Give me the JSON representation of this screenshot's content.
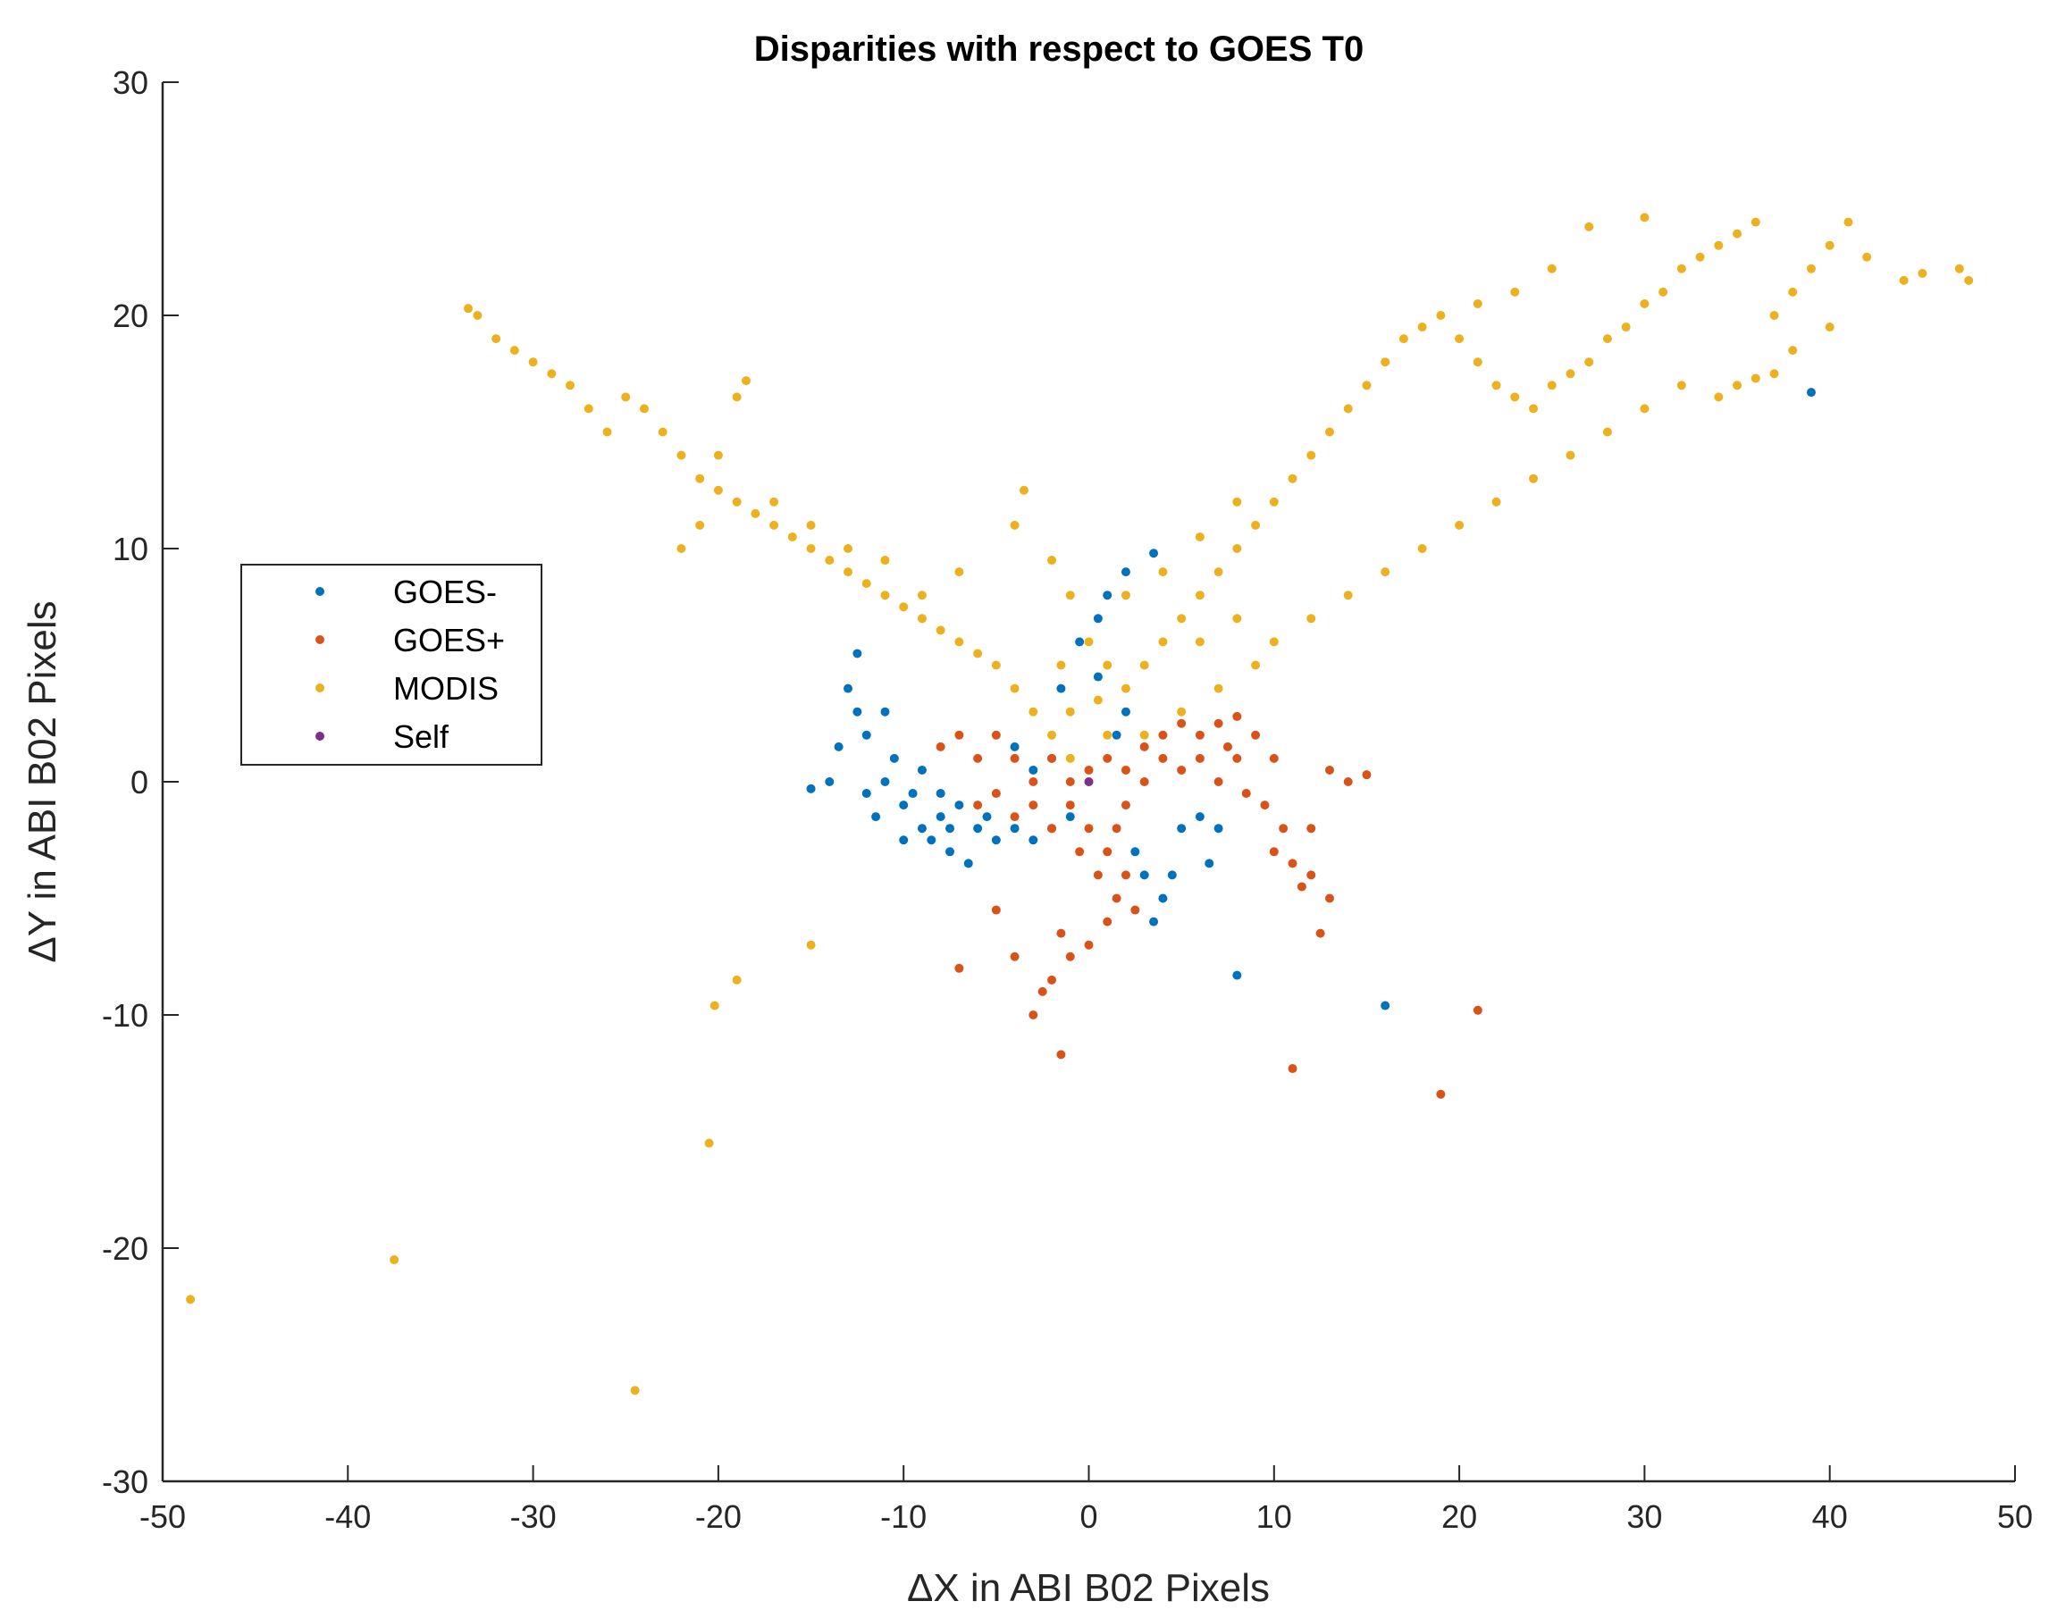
{
  "chart_data": {
    "type": "scatter",
    "title": "Disparities with respect to GOES T0",
    "xlabel": "ΔX in ABI B02 Pixels",
    "ylabel": "ΔY in ABI B02 Pixels",
    "xlim": [
      -50,
      50
    ],
    "ylim": [
      -30,
      30
    ],
    "xticks": [
      -50,
      -40,
      -30,
      -20,
      -10,
      0,
      10,
      20,
      30,
      40,
      50
    ],
    "yticks": [
      -30,
      -20,
      -10,
      0,
      10,
      20,
      30
    ],
    "xtick_labels": [
      "-50",
      "-40",
      "-30",
      "-20",
      "-10",
      "0",
      "10",
      "20",
      "30",
      "40",
      "50"
    ],
    "ytick_labels": [
      "-30",
      "-20",
      "-10",
      "0",
      "10",
      "20",
      "30"
    ],
    "grid": false,
    "legend_position": "middle-left",
    "series": [
      {
        "name": "GOES-",
        "color": "#0072BD",
        "points": [
          [
            -10,
            -1
          ],
          [
            -9,
            -2
          ],
          [
            -8,
            -1.5
          ],
          [
            -11,
            0
          ],
          [
            -12,
            2
          ],
          [
            -13,
            4
          ],
          [
            -12.5,
            5.5
          ],
          [
            -11,
            3
          ],
          [
            -10.5,
            1
          ],
          [
            -9.5,
            -0.5
          ],
          [
            -8.5,
            -2.5
          ],
          [
            -7.5,
            -3
          ],
          [
            -7,
            -1
          ],
          [
            -6,
            -2
          ],
          [
            -5,
            -2.5
          ],
          [
            -4,
            -2
          ],
          [
            -3,
            -2.5
          ],
          [
            -2,
            -2
          ],
          [
            -1,
            -1.5
          ],
          [
            -14,
            0
          ],
          [
            -15,
            -0.3
          ],
          [
            -13.5,
            1.5
          ],
          [
            -12,
            -0.5
          ],
          [
            -11.5,
            -1.5
          ],
          [
            -9,
            0.5
          ],
          [
            -8,
            -0.5
          ],
          [
            -10,
            -2.5
          ],
          [
            -6.5,
            -3.5
          ],
          [
            -7.5,
            -2
          ],
          [
            -5.5,
            -1.5
          ],
          [
            -12.5,
            3
          ],
          [
            3,
            -4
          ],
          [
            3.5,
            -6
          ],
          [
            4,
            -5
          ],
          [
            2.5,
            -3
          ],
          [
            5,
            -2
          ],
          [
            6,
            -1.5
          ],
          [
            7,
            -2
          ],
          [
            6.5,
            -3.5
          ],
          [
            4.5,
            -4
          ],
          [
            8,
            -8.3
          ],
          [
            16,
            -9.6
          ],
          [
            39,
            16.7
          ],
          [
            3.5,
            9.8
          ],
          [
            2,
            9
          ],
          [
            1,
            8
          ],
          [
            0.5,
            7
          ],
          [
            -0.5,
            6
          ],
          [
            -1.5,
            4
          ],
          [
            0.5,
            4.5
          ],
          [
            2,
            3
          ],
          [
            1.5,
            2
          ],
          [
            -2,
            1
          ],
          [
            -3,
            0.5
          ],
          [
            -4,
            1.5
          ]
        ]
      },
      {
        "name": "GOES+",
        "color": "#D95319",
        "points": [
          [
            0,
            -2
          ],
          [
            1,
            -3
          ],
          [
            2,
            -4
          ],
          [
            1.5,
            -5
          ],
          [
            1,
            -6
          ],
          [
            0,
            -7
          ],
          [
            -1,
            -7.5
          ],
          [
            -2,
            -8.5
          ],
          [
            -3,
            -10
          ],
          [
            2,
            -1
          ],
          [
            3,
            0
          ],
          [
            4,
            1
          ],
          [
            5,
            0.5
          ],
          [
            6,
            1
          ],
          [
            7,
            0
          ],
          [
            8,
            1
          ],
          [
            9,
            2
          ],
          [
            10,
            1
          ],
          [
            9.5,
            -1
          ],
          [
            10,
            -3
          ],
          [
            11,
            -3.5
          ],
          [
            12,
            -4
          ],
          [
            13,
            -5
          ],
          [
            12.5,
            -6.5
          ],
          [
            11.5,
            -4.5
          ],
          [
            10.5,
            -2
          ],
          [
            8.5,
            -0.5
          ],
          [
            7.5,
            1.5
          ],
          [
            -1,
            0
          ],
          [
            -2,
            1
          ],
          [
            -3,
            0
          ],
          [
            -4,
            1
          ],
          [
            -5,
            2
          ],
          [
            -6,
            1
          ],
          [
            -7,
            2
          ],
          [
            -8,
            1.5
          ],
          [
            -6,
            -1
          ],
          [
            -5,
            -0.5
          ],
          [
            -4,
            -1.5
          ],
          [
            -3,
            -1
          ],
          [
            -2,
            -2
          ],
          [
            -1,
            -1
          ],
          [
            0,
            0.5
          ],
          [
            1,
            1
          ],
          [
            2,
            0.5
          ],
          [
            3,
            1.5
          ],
          [
            4,
            2
          ],
          [
            5,
            2.5
          ],
          [
            6,
            2
          ],
          [
            7,
            2.5
          ],
          [
            8,
            2.8
          ],
          [
            0.5,
            -4
          ],
          [
            1.5,
            -2
          ],
          [
            -0.5,
            -3
          ],
          [
            2.5,
            -5.5
          ],
          [
            -1.5,
            -6.5
          ],
          [
            -5,
            -5.5
          ],
          [
            -7,
            -8
          ],
          [
            -1.5,
            -11.7
          ],
          [
            11,
            -12.3
          ],
          [
            19,
            -13.4
          ],
          [
            21,
            -9.8
          ],
          [
            15,
            0.3
          ],
          [
            14,
            0
          ],
          [
            13,
            0.5
          ],
          [
            12,
            -2
          ],
          [
            -2.5,
            -9
          ],
          [
            -4,
            -7.5
          ]
        ]
      },
      {
        "name": "MODIS",
        "color": "#EDB120",
        "points": [
          [
            0,
            0
          ],
          [
            -1,
            1
          ],
          [
            -2,
            2
          ],
          [
            -3,
            3
          ],
          [
            -4,
            4
          ],
          [
            -5,
            5
          ],
          [
            -6,
            5.5
          ],
          [
            -7,
            6
          ],
          [
            -8,
            6.5
          ],
          [
            -9,
            7
          ],
          [
            -10,
            7.5
          ],
          [
            -11,
            8
          ],
          [
            -12,
            8.5
          ],
          [
            -13,
            9
          ],
          [
            -14,
            9.5
          ],
          [
            -15,
            10
          ],
          [
            -16,
            10.5
          ],
          [
            -17,
            11
          ],
          [
            -18,
            11.5
          ],
          [
            -19,
            12
          ],
          [
            -20,
            12.5
          ],
          [
            -21,
            13
          ],
          [
            -22,
            14
          ],
          [
            -23,
            15
          ],
          [
            -24,
            16
          ],
          [
            -25,
            16.5
          ],
          [
            -26,
            15
          ],
          [
            -27,
            16
          ],
          [
            -28,
            17
          ],
          [
            -29,
            17.5
          ],
          [
            -30,
            18
          ],
          [
            -31,
            18.5
          ],
          [
            -32,
            19
          ],
          [
            -33,
            20
          ],
          [
            -33.5,
            20.3
          ],
          [
            -19,
            16.5
          ],
          [
            -18.5,
            17.2
          ],
          [
            -20,
            14
          ],
          [
            -21,
            11
          ],
          [
            -22,
            10
          ],
          [
            -3.5,
            12.5
          ],
          [
            -4,
            11
          ],
          [
            -2,
            9.5
          ],
          [
            -1,
            8
          ],
          [
            0,
            6
          ],
          [
            1,
            5
          ],
          [
            2,
            4
          ],
          [
            3,
            5
          ],
          [
            4,
            6
          ],
          [
            5,
            7
          ],
          [
            6,
            8
          ],
          [
            7,
            9
          ],
          [
            8,
            10
          ],
          [
            9,
            11
          ],
          [
            10,
            12
          ],
          [
            11,
            13
          ],
          [
            12,
            14
          ],
          [
            13,
            15
          ],
          [
            14,
            16
          ],
          [
            15,
            17
          ],
          [
            16,
            18
          ],
          [
            17,
            19
          ],
          [
            18,
            19.5
          ],
          [
            19,
            20
          ],
          [
            20,
            19
          ],
          [
            21,
            18
          ],
          [
            22,
            17
          ],
          [
            23,
            16.5
          ],
          [
            24,
            16
          ],
          [
            25,
            17
          ],
          [
            26,
            17.5
          ],
          [
            27,
            18
          ],
          [
            28,
            19
          ],
          [
            29,
            19.5
          ],
          [
            30,
            20.5
          ],
          [
            31,
            21
          ],
          [
            32,
            22
          ],
          [
            33,
            22.5
          ],
          [
            34,
            23
          ],
          [
            35,
            23.5
          ],
          [
            36,
            24
          ],
          [
            37,
            20
          ],
          [
            38,
            21
          ],
          [
            39,
            22
          ],
          [
            40,
            23
          ],
          [
            41,
            24
          ],
          [
            42,
            22.5
          ],
          [
            44,
            21.5
          ],
          [
            45,
            21.8
          ],
          [
            47,
            22
          ],
          [
            47.5,
            21.5
          ],
          [
            10,
            6
          ],
          [
            12,
            7
          ],
          [
            14,
            8
          ],
          [
            16,
            9
          ],
          [
            18,
            10
          ],
          [
            20,
            11
          ],
          [
            22,
            12
          ],
          [
            24,
            13
          ],
          [
            26,
            14
          ],
          [
            28,
            15
          ],
          [
            30,
            16
          ],
          [
            32,
            17
          ],
          [
            34,
            16.5
          ],
          [
            35,
            17
          ],
          [
            36,
            17.3
          ],
          [
            37,
            17.5
          ],
          [
            38,
            18.5
          ],
          [
            40,
            19.5
          ],
          [
            3,
            2
          ],
          [
            5,
            3
          ],
          [
            7,
            4
          ],
          [
            9,
            5
          ],
          [
            6,
            6
          ],
          [
            8,
            7
          ],
          [
            2,
            8
          ],
          [
            4,
            9
          ],
          [
            6,
            10.5
          ],
          [
            8,
            12
          ],
          [
            30,
            24.2
          ],
          [
            27,
            23.8
          ],
          [
            25,
            22
          ],
          [
            23,
            21
          ],
          [
            21,
            20.5
          ],
          [
            -7,
            9
          ],
          [
            -9,
            8
          ],
          [
            -11,
            9.5
          ],
          [
            -13,
            10
          ],
          [
            -15,
            11
          ],
          [
            -17,
            12
          ],
          [
            -1,
            3
          ],
          [
            1,
            2
          ],
          [
            -1.5,
            5
          ],
          [
            0.5,
            3.5
          ],
          [
            -20.2,
            -9.6
          ],
          [
            -19,
            -8.5
          ],
          [
            -15,
            -7
          ],
          [
            -20.5,
            -15.5
          ],
          [
            -37.5,
            -20.5
          ],
          [
            -48.5,
            -22.2
          ],
          [
            -24.5,
            -26.1
          ]
        ]
      },
      {
        "name": "Self",
        "color": "#7E2F8E",
        "points": [
          [
            0,
            0
          ]
        ]
      }
    ]
  }
}
